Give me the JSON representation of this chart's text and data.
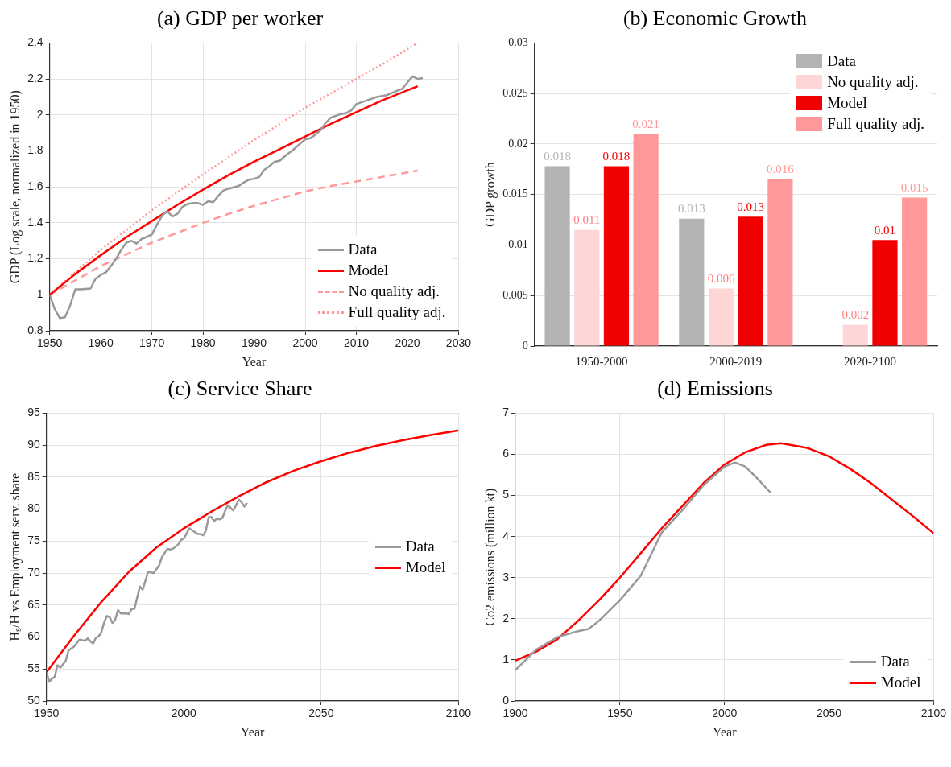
{
  "chart_data": [
    {
      "type": "line",
      "title": "(a) GDP per worker",
      "xlabel": "Year",
      "ylabel": "GDP (Log scale, normalized in 1950)",
      "xlim": [
        1950,
        2030
      ],
      "xticks": [
        1950,
        1960,
        1970,
        1980,
        1990,
        2000,
        2010,
        2020,
        2030
      ],
      "ylim": [
        0.8,
        2.4
      ],
      "yticks": [
        0.8,
        1,
        1.2,
        1.4,
        1.6,
        1.8,
        2,
        2.2,
        2.4
      ],
      "grid": true,
      "legend": "bottom right",
      "series": [
        {
          "name": "Data",
          "color": "#999999",
          "line_style": "solid",
          "x": [
            1950,
            1951,
            1952,
            1953,
            1954,
            1955,
            1956,
            1958,
            1959,
            1960,
            1961,
            1962,
            1963,
            1964,
            1965,
            1966,
            1967,
            1968,
            1970,
            1971,
            1972,
            1973,
            1974,
            1975,
            1976,
            1977,
            1978,
            1979,
            1980,
            1981,
            1982,
            1983,
            1984,
            1985,
            1987,
            1988,
            1989,
            1990,
            1991,
            1992,
            1993,
            1994,
            1995,
            1996,
            1998,
            2000,
            2001,
            2002,
            2003,
            2004,
            2005,
            2007,
            2008,
            2009,
            2010,
            2012,
            2014,
            2016,
            2018,
            2019,
            2020,
            2021,
            2022,
            2023
          ],
          "values": [
            1.0,
            0.92,
            0.87,
            0.875,
            0.94,
            1.03,
            1.03,
            1.035,
            1.09,
            1.11,
            1.125,
            1.16,
            1.2,
            1.25,
            1.29,
            1.3,
            1.285,
            1.31,
            1.335,
            1.39,
            1.44,
            1.465,
            1.435,
            1.45,
            1.49,
            1.505,
            1.51,
            1.51,
            1.5,
            1.52,
            1.515,
            1.55,
            1.58,
            1.59,
            1.605,
            1.625,
            1.64,
            1.645,
            1.655,
            1.695,
            1.715,
            1.74,
            1.745,
            1.77,
            1.815,
            1.865,
            1.87,
            1.89,
            1.915,
            1.955,
            1.985,
            2.005,
            2.01,
            2.025,
            2.06,
            2.08,
            2.1,
            2.11,
            2.135,
            2.145,
            2.18,
            2.215,
            2.2,
            2.205
          ]
        },
        {
          "name": "Model",
          "color": "#ff0000",
          "line_style": "solid",
          "x": [
            1950,
            1955,
            1960,
            1965,
            1970,
            1975,
            1980,
            1985,
            1990,
            1995,
            2000,
            2005,
            2010,
            2015,
            2022
          ],
          "values": [
            1.0,
            1.115,
            1.22,
            1.32,
            1.41,
            1.5,
            1.585,
            1.665,
            1.74,
            1.81,
            1.88,
            1.95,
            2.015,
            2.08,
            2.16
          ]
        },
        {
          "name": "No quality adj.",
          "color": "#ff9999",
          "line_style": "dashed",
          "x": [
            1950,
            1955,
            1960,
            1965,
            1970,
            1975,
            1980,
            1985,
            1990,
            1995,
            2000,
            2005,
            2010,
            2015,
            2022
          ],
          "values": [
            1.0,
            1.08,
            1.16,
            1.225,
            1.29,
            1.345,
            1.4,
            1.45,
            1.495,
            1.535,
            1.575,
            1.605,
            1.63,
            1.655,
            1.69
          ]
        },
        {
          "name": "Full quality adj.",
          "color": "#ff9999",
          "line_style": "dotted",
          "x": [
            1950,
            1955,
            1960,
            1965,
            1970,
            1975,
            1980,
            1985,
            1990,
            1995,
            2000,
            2005,
            2010,
            2015,
            2022
          ],
          "values": [
            1.0,
            1.125,
            1.25,
            1.36,
            1.47,
            1.57,
            1.67,
            1.765,
            1.86,
            1.95,
            2.04,
            2.12,
            2.2,
            2.28,
            2.4
          ]
        }
      ]
    },
    {
      "type": "bar",
      "title": "(b) Economic Growth",
      "ylabel": "GDP growth",
      "categories": [
        "1950-2000",
        "2000-2019",
        "2020-2100"
      ],
      "ylim": [
        0,
        0.03
      ],
      "yticks": [
        0,
        0.005,
        0.01,
        0.015,
        0.02,
        0.025,
        0.03
      ],
      "grid": "y",
      "legend": "top right",
      "series": [
        {
          "name": "Data",
          "color": "#b3b3b3",
          "values": [
            0.0178,
            0.0126,
            null
          ],
          "value_labels": [
            "0.018",
            "0.013",
            null
          ]
        },
        {
          "name": "No quality adj.",
          "color": "#ffd6d6",
          "values": [
            0.0115,
            0.0057,
            0.0021
          ],
          "value_labels": [
            "0.011",
            "0.006",
            "0.002"
          ]
        },
        {
          "name": "Model",
          "color": "#f00000",
          "values": [
            0.0178,
            0.0128,
            0.0105
          ],
          "value_labels": [
            "0.018",
            "0.013",
            "0.01"
          ]
        },
        {
          "name": "Full quality adj.",
          "color": "#ff9999",
          "values": [
            0.021,
            0.0165,
            0.0147
          ],
          "value_labels": [
            "0.021",
            "0.016",
            "0.015"
          ]
        }
      ]
    },
    {
      "type": "line",
      "title": "(c) Service Share",
      "xlabel": "Year",
      "ylabel": "Hₛ/H vs Employment serv. share",
      "xlim": [
        1950,
        2100
      ],
      "xticks": [
        1950,
        2000,
        2050,
        2100
      ],
      "ylim": [
        50,
        95
      ],
      "yticks": [
        50,
        55,
        60,
        65,
        70,
        75,
        80,
        85,
        90,
        95
      ],
      "grid": true,
      "legend": "right",
      "series": [
        {
          "name": "Data",
          "color": "#999999",
          "line_style": "solid",
          "x": [
            1950,
            1951,
            1952,
            1953,
            1954,
            1955,
            1957,
            1958,
            1960,
            1962,
            1964,
            1965,
            1966,
            1967,
            1968,
            1969,
            1970,
            1971,
            1972,
            1973,
            1974,
            1975,
            1976,
            1977,
            1979,
            1980,
            1981,
            1982,
            1984,
            1985,
            1986,
            1987,
            1989,
            1991,
            1992,
            1994,
            1995,
            1996,
            1998,
            1999,
            2000,
            2001,
            2002,
            2003,
            2005,
            2006,
            2007,
            2008,
            2009,
            2010,
            2011,
            2012,
            2013,
            2014,
            2015,
            2016,
            2017,
            2018,
            2019,
            2020,
            2021,
            2022,
            2023
          ],
          "values": [
            54.5,
            53,
            53.5,
            53.8,
            55.6,
            55.2,
            56.3,
            57.9,
            58.5,
            59.6,
            59.4,
            59.8,
            59.3,
            59,
            59.9,
            60.1,
            60.8,
            62.3,
            63.3,
            63.1,
            62.2,
            62.7,
            64.2,
            63.7,
            63.7,
            63.6,
            64.4,
            64.4,
            67.9,
            67.4,
            68.8,
            70.2,
            70,
            71.2,
            72.5,
            73.8,
            73.7,
            73.8,
            74.5,
            75.2,
            75.4,
            76.2,
            77,
            76.7,
            76.1,
            76.1,
            75.9,
            76.6,
            78.7,
            78.8,
            78.1,
            78.5,
            78.4,
            78.6,
            79.7,
            80.6,
            80.2,
            79.8,
            80.6,
            81.5,
            81.1,
            80.4,
            81
          ]
        },
        {
          "name": "Model",
          "color": "#ff0000",
          "line_style": "solid",
          "x": [
            1950,
            1960,
            1970,
            1980,
            1990,
            2000,
            2010,
            2020,
            2030,
            2040,
            2050,
            2060,
            2070,
            2080,
            2090,
            2100
          ],
          "values": [
            54.5,
            60.2,
            65.5,
            70.2,
            74,
            77,
            79.6,
            82,
            84.2,
            86,
            87.5,
            88.8,
            89.9,
            90.8,
            91.6,
            92.3
          ]
        }
      ]
    },
    {
      "type": "line",
      "title": "(d) Emissions",
      "xlabel": "Year",
      "ylabel": "Co2 emissions (million kt)",
      "xlim": [
        1900,
        2100
      ],
      "xticks": [
        1900,
        1950,
        2000,
        2050,
        2100
      ],
      "ylim": [
        0,
        7
      ],
      "yticks": [
        0,
        1,
        2,
        3,
        4,
        5,
        6,
        7
      ],
      "grid": true,
      "legend": "bottom right",
      "series": [
        {
          "name": "Data",
          "color": "#999999",
          "line_style": "solid",
          "x": [
            1900,
            1910,
            1920,
            1930,
            1935,
            1940,
            1950,
            1960,
            1970,
            1980,
            1990,
            2000,
            2005,
            2010,
            2015,
            2022
          ],
          "values": [
            0.75,
            1.25,
            1.55,
            1.7,
            1.75,
            1.95,
            2.45,
            3.05,
            4.1,
            4.65,
            5.25,
            5.7,
            5.8,
            5.7,
            5.45,
            5.07
          ]
        },
        {
          "name": "Model",
          "color": "#ff0000",
          "line_style": "solid",
          "x": [
            1900,
            1910,
            1920,
            1930,
            1940,
            1950,
            1960,
            1970,
            1980,
            1990,
            2000,
            2010,
            2020,
            2027,
            2040,
            2050,
            2060,
            2070,
            2080,
            2090,
            2100
          ],
          "values": [
            0.98,
            1.2,
            1.5,
            1.95,
            2.45,
            3.0,
            3.6,
            4.2,
            4.75,
            5.3,
            5.75,
            6.05,
            6.23,
            6.27,
            6.15,
            5.95,
            5.65,
            5.3,
            4.9,
            4.5,
            4.08
          ]
        }
      ]
    }
  ]
}
